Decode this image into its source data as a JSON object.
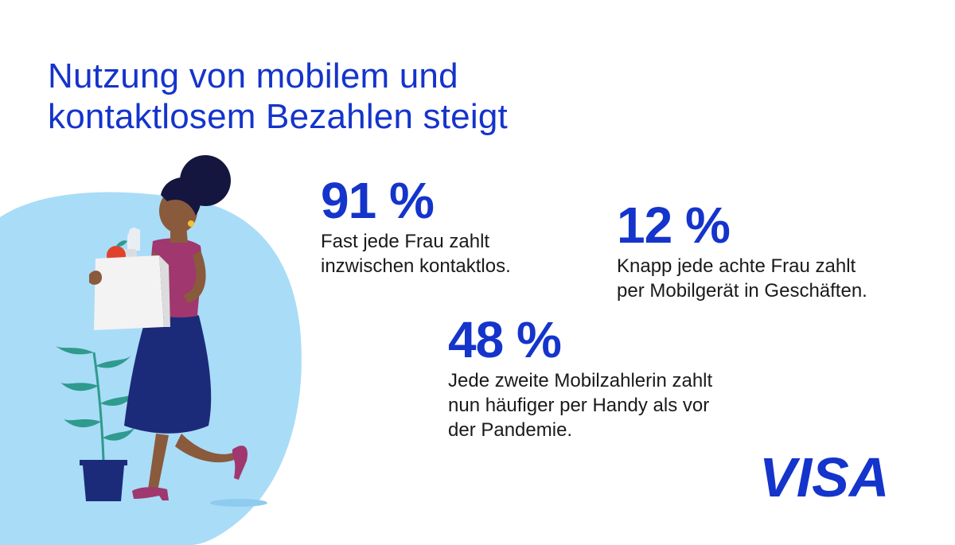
{
  "title": {
    "line1": "Nutzung von mobilem und",
    "line2": "kontaktlosem Bezahlen steigt"
  },
  "stats": [
    {
      "value": "91 %",
      "lines": [
        "Fast jede Frau zahlt",
        "inzwischen kontaktlos."
      ]
    },
    {
      "value": "12 %",
      "lines": [
        "Knapp jede achte Frau zahlt",
        "per Mobilgerät in Geschäften."
      ]
    },
    {
      "value": "48 %",
      "lines": [
        "Jede zweite Mobilzahlerin zahlt",
        "nun häufiger per Handy als vor",
        "der Pandemie."
      ]
    }
  ],
  "brand": {
    "logo_text": "VISA",
    "color": "#1434cb"
  },
  "illustration": {
    "background_color": "#a9dcf7",
    "skin_color": "#8a5a3c",
    "hair_color": "#14163f",
    "top_color": "#a0376f",
    "skirt_color": "#1b2b7a",
    "shoe_color": "#a0376f",
    "plant_color": "#2f9a8e",
    "pot_color": "#1b2b7a"
  }
}
